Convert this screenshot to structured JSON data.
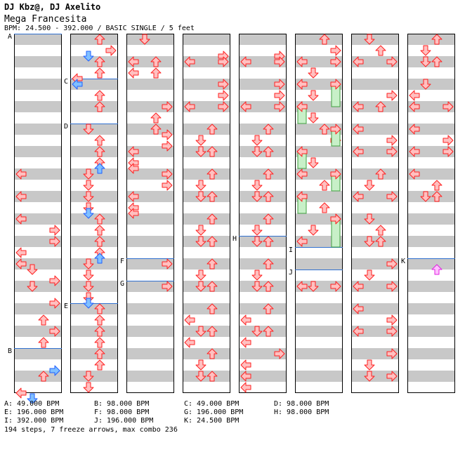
{
  "header": {
    "artist": "DJ Kbz@, DJ Axelito",
    "title": "Mega Francesita",
    "bpm_info": "BPM: 24.500 - 392.000 / BASIC SINGLE / 5 feet"
  },
  "legend": [
    {
      "id": "A",
      "text": "A: 49.000 BPM"
    },
    {
      "id": "B",
      "text": "B: 98.000 BPM"
    },
    {
      "id": "C",
      "text": "C: 49.000 BPM"
    },
    {
      "id": "D",
      "text": "D: 98.000 BPM"
    },
    {
      "id": "E",
      "text": "E: 196.000 BPM"
    },
    {
      "id": "F",
      "text": "F: 98.000 BPM"
    },
    {
      "id": "G",
      "text": "G: 196.000 BPM"
    },
    {
      "id": "H",
      "text": "H: 98.000 BPM"
    },
    {
      "id": "I",
      "text": "I: 392.000 BPM"
    },
    {
      "id": "J",
      "text": "J: 196.000 BPM"
    },
    {
      "id": "K",
      "text": "K: 24.500 BPM"
    }
  ],
  "footer": "194 steps, 7 freeze arrows, max combo 236",
  "colors": {
    "stripe": "#c8c8c8",
    "arrow_fill": "#ffc0c0",
    "arrow_stroke": "#ff2020",
    "blue_fill": "#80c0ff",
    "blue_stroke": "#2060ff",
    "pink_fill": "#ffc0ff",
    "pink_stroke": "#e020e0",
    "freeze_fill": "#c8f0c8",
    "freeze_stroke": "#40a040",
    "bpm_line": "#3070d0"
  },
  "markers": [
    {
      "label": "A",
      "col": 0,
      "row": 0
    },
    {
      "label": "B",
      "col": 0,
      "row": 14
    },
    {
      "label": "C",
      "col": 1,
      "row": 2
    },
    {
      "label": "D",
      "col": 1,
      "row": 4
    },
    {
      "label": "E",
      "col": 1,
      "row": 12
    },
    {
      "label": "F",
      "col": 2,
      "row": 10
    },
    {
      "label": "G",
      "col": 2,
      "row": 11
    },
    {
      "label": "H",
      "col": 4,
      "row": 9
    },
    {
      "label": "I",
      "col": 5,
      "row": 9.5
    },
    {
      "label": "J",
      "col": 5,
      "row": 10.5
    },
    {
      "label": "K",
      "col": 7,
      "row": 10
    }
  ],
  "notes": [
    {
      "c": 0,
      "r": 9.5,
      "d": "L"
    },
    {
      "c": 0,
      "r": 10,
      "d": "L"
    },
    {
      "c": 0,
      "r": 7,
      "d": "L"
    },
    {
      "c": 0,
      "r": 8.5,
      "d": "R"
    },
    {
      "c": 0,
      "r": 9,
      "d": "R"
    },
    {
      "c": 0,
      "r": 10.25,
      "d": "D"
    },
    {
      "c": 0,
      "r": 10.75,
      "d": "R"
    },
    {
      "c": 0,
      "r": 11,
      "d": "D"
    },
    {
      "c": 0,
      "r": 11.75,
      "d": "R"
    },
    {
      "c": 0,
      "r": 12.5,
      "d": "U"
    },
    {
      "c": 0,
      "r": 13,
      "d": "R"
    },
    {
      "c": 0,
      "r": 13.5,
      "d": "U"
    },
    {
      "c": 0,
      "r": 14.75,
      "d": "R",
      "b": 1
    },
    {
      "c": 0,
      "r": 15,
      "d": "U"
    },
    {
      "c": 0,
      "r": 15.75,
      "d": "L"
    },
    {
      "c": 0,
      "r": 16,
      "d": "D",
      "b": 1
    },
    {
      "c": 0,
      "r": 6,
      "d": "L"
    },
    {
      "c": 0,
      "r": 8,
      "d": "L"
    },
    {
      "c": 1,
      "r": 0,
      "d": "U"
    },
    {
      "c": 1,
      "r": 0.5,
      "d": "R"
    },
    {
      "c": 1,
      "r": 0.75,
      "d": "D",
      "b": 1
    },
    {
      "c": 1,
      "r": 1,
      "d": "U"
    },
    {
      "c": 1,
      "r": 1.5,
      "d": "U"
    },
    {
      "c": 1,
      "r": 1.75,
      "d": "L"
    },
    {
      "c": 1,
      "r": 2,
      "d": "L",
      "b": 1
    },
    {
      "c": 1,
      "r": 2.5,
      "d": "U"
    },
    {
      "c": 1,
      "r": 3,
      "d": "U"
    },
    {
      "c": 1,
      "r": 4,
      "d": "D"
    },
    {
      "c": 1,
      "r": 4.5,
      "d": "U"
    },
    {
      "c": 1,
      "r": 5,
      "d": "U"
    },
    {
      "c": 1,
      "r": 5.5,
      "d": "U"
    },
    {
      "c": 1,
      "r": 5.75,
      "d": "U",
      "b": 1
    },
    {
      "c": 1,
      "r": 6,
      "d": "D"
    },
    {
      "c": 1,
      "r": 6.5,
      "d": "D"
    },
    {
      "c": 1,
      "r": 7,
      "d": "D"
    },
    {
      "c": 1,
      "r": 7.5,
      "d": "D"
    },
    {
      "c": 1,
      "r": 7.75,
      "d": "D",
      "b": 1
    },
    {
      "c": 1,
      "r": 8,
      "d": "U"
    },
    {
      "c": 1,
      "r": 8.5,
      "d": "U"
    },
    {
      "c": 1,
      "r": 9,
      "d": "U"
    },
    {
      "c": 1,
      "r": 9.5,
      "d": "U"
    },
    {
      "c": 1,
      "r": 9.75,
      "d": "U",
      "b": 1
    },
    {
      "c": 1,
      "r": 10,
      "d": "D"
    },
    {
      "c": 1,
      "r": 10.5,
      "d": "D"
    },
    {
      "c": 1,
      "r": 11,
      "d": "D"
    },
    {
      "c": 1,
      "r": 11.5,
      "d": "D"
    },
    {
      "c": 1,
      "r": 11.75,
      "d": "D",
      "b": 1
    },
    {
      "c": 1,
      "r": 12,
      "d": "U"
    },
    {
      "c": 1,
      "r": 12.5,
      "d": "U"
    },
    {
      "c": 1,
      "r": 13,
      "d": "U"
    },
    {
      "c": 1,
      "r": 13.5,
      "d": "U"
    },
    {
      "c": 1,
      "r": 14,
      "d": "U"
    },
    {
      "c": 1,
      "r": 14.5,
      "d": "U"
    },
    {
      "c": 1,
      "r": 15,
      "d": "D"
    },
    {
      "c": 1,
      "r": 15.5,
      "d": "D"
    },
    {
      "c": 2,
      "r": 0,
      "d": "D"
    },
    {
      "c": 2,
      "r": 0,
      "d": "D",
      "x": 1
    },
    {
      "c": 2,
      "r": 1,
      "d": "L"
    },
    {
      "c": 2,
      "r": 1,
      "d": "U",
      "x": 1
    },
    {
      "c": 2,
      "r": 1.5,
      "d": "U",
      "x": 1
    },
    {
      "c": 2,
      "r": 1.5,
      "d": "L"
    },
    {
      "c": 2,
      "r": 3,
      "d": "R"
    },
    {
      "c": 2,
      "r": 3.5,
      "d": "U"
    },
    {
      "c": 2,
      "r": 4,
      "d": "U"
    },
    {
      "c": 2,
      "r": 4.25,
      "d": "R"
    },
    {
      "c": 2,
      "r": 4.75,
      "d": "R"
    },
    {
      "c": 2,
      "r": 5,
      "d": "L"
    },
    {
      "c": 2,
      "r": 5.5,
      "d": "L"
    },
    {
      "c": 2,
      "r": 5.75,
      "d": "L"
    },
    {
      "c": 2,
      "r": 6,
      "d": "R"
    },
    {
      "c": 2,
      "r": 6.5,
      "d": "R"
    },
    {
      "c": 2,
      "r": 7,
      "d": "L"
    },
    {
      "c": 2,
      "r": 7.5,
      "d": "L"
    },
    {
      "c": 2,
      "r": 7.75,
      "d": "L"
    },
    {
      "c": 2,
      "r": 10,
      "d": "R"
    },
    {
      "c": 2,
      "r": 11,
      "d": "R"
    },
    {
      "c": 3,
      "r": 0.75,
      "d": "R"
    },
    {
      "c": 3,
      "r": 1,
      "d": "L"
    },
    {
      "c": 3,
      "r": 1,
      "d": "R",
      "x": 1
    },
    {
      "c": 3,
      "r": 2,
      "d": "R"
    },
    {
      "c": 3,
      "r": 2.5,
      "d": "R"
    },
    {
      "c": 3,
      "r": 3,
      "d": "L"
    },
    {
      "c": 3,
      "r": 3,
      "d": "R",
      "x": 1
    },
    {
      "c": 3,
      "r": 4,
      "d": "U"
    },
    {
      "c": 3,
      "r": 4.5,
      "d": "D"
    },
    {
      "c": 3,
      "r": 5,
      "d": "D"
    },
    {
      "c": 3,
      "r": 5,
      "d": "U",
      "x": 1
    },
    {
      "c": 3,
      "r": 6,
      "d": "U"
    },
    {
      "c": 3,
      "r": 6.5,
      "d": "D"
    },
    {
      "c": 3,
      "r": 7,
      "d": "D"
    },
    {
      "c": 3,
      "r": 7,
      "d": "U",
      "x": 1
    },
    {
      "c": 3,
      "r": 8,
      "d": "U"
    },
    {
      "c": 3,
      "r": 8.5,
      "d": "D"
    },
    {
      "c": 3,
      "r": 9,
      "d": "D"
    },
    {
      "c": 3,
      "r": 9,
      "d": "U",
      "x": 1
    },
    {
      "c": 3,
      "r": 10,
      "d": "U"
    },
    {
      "c": 3,
      "r": 10.5,
      "d": "D"
    },
    {
      "c": 3,
      "r": 11,
      "d": "D"
    },
    {
      "c": 3,
      "r": 11,
      "d": "U",
      "x": 1
    },
    {
      "c": 3,
      "r": 12,
      "d": "U"
    },
    {
      "c": 3,
      "r": 13,
      "d": "D"
    },
    {
      "c": 3,
      "r": 13,
      "d": "U",
      "x": 1
    },
    {
      "c": 3,
      "r": 12.5,
      "d": "L"
    },
    {
      "c": 3,
      "r": 13.5,
      "d": "L"
    },
    {
      "c": 3,
      "r": 14,
      "d": "U"
    },
    {
      "c": 3,
      "r": 14.5,
      "d": "D"
    },
    {
      "c": 3,
      "r": 15,
      "d": "D"
    },
    {
      "c": 3,
      "r": 15,
      "d": "U",
      "x": 1
    },
    {
      "c": 4,
      "r": 0.75,
      "d": "R"
    },
    {
      "c": 4,
      "r": 1,
      "d": "L"
    },
    {
      "c": 4,
      "r": 1,
      "d": "R",
      "x": 1
    },
    {
      "c": 4,
      "r": 2,
      "d": "R"
    },
    {
      "c": 4,
      "r": 2.5,
      "d": "R"
    },
    {
      "c": 4,
      "r": 3,
      "d": "L"
    },
    {
      "c": 4,
      "r": 3,
      "d": "R",
      "x": 1
    },
    {
      "c": 4,
      "r": 4,
      "d": "U"
    },
    {
      "c": 4,
      "r": 4.5,
      "d": "D"
    },
    {
      "c": 4,
      "r": 5,
      "d": "D"
    },
    {
      "c": 4,
      "r": 5,
      "d": "U",
      "x": 1
    },
    {
      "c": 4,
      "r": 6,
      "d": "U"
    },
    {
      "c": 4,
      "r": 6.5,
      "d": "D"
    },
    {
      "c": 4,
      "r": 7,
      "d": "D"
    },
    {
      "c": 4,
      "r": 7,
      "d": "U",
      "x": 1
    },
    {
      "c": 4,
      "r": 8,
      "d": "U"
    },
    {
      "c": 4,
      "r": 8.5,
      "d": "D"
    },
    {
      "c": 4,
      "r": 9,
      "d": "D"
    },
    {
      "c": 4,
      "r": 9,
      "d": "U",
      "x": 1
    },
    {
      "c": 4,
      "r": 10,
      "d": "U"
    },
    {
      "c": 4,
      "r": 10.5,
      "d": "D"
    },
    {
      "c": 4,
      "r": 11,
      "d": "D"
    },
    {
      "c": 4,
      "r": 11,
      "d": "U",
      "x": 1
    },
    {
      "c": 4,
      "r": 12,
      "d": "U"
    },
    {
      "c": 4,
      "r": 12.5,
      "d": "L"
    },
    {
      "c": 4,
      "r": 13,
      "d": "D"
    },
    {
      "c": 4,
      "r": 13,
      "d": "U",
      "x": 1
    },
    {
      "c": 4,
      "r": 13.5,
      "d": "L"
    },
    {
      "c": 4,
      "r": 14,
      "d": "R"
    },
    {
      "c": 4,
      "r": 14.5,
      "d": "L"
    },
    {
      "c": 4,
      "r": 15,
      "d": "L"
    },
    {
      "c": 4,
      "r": 15.5,
      "d": "L"
    },
    {
      "c": 5,
      "r": 0,
      "d": "U"
    },
    {
      "c": 5,
      "r": 0.5,
      "d": "R"
    },
    {
      "c": 5,
      "r": 1,
      "d": "L"
    },
    {
      "c": 5,
      "r": 1,
      "d": "R",
      "x": 1
    },
    {
      "c": 5,
      "r": 1.5,
      "d": "D"
    },
    {
      "c": 5,
      "r": 2,
      "d": "L"
    },
    {
      "c": 5,
      "r": 2.5,
      "d": "D"
    },
    {
      "c": 5,
      "r": 3,
      "d": "L"
    },
    {
      "c": 5,
      "r": 3.5,
      "d": "D"
    },
    {
      "c": 5,
      "r": 4,
      "d": "U"
    },
    {
      "c": 5,
      "r": 4.5,
      "d": "R"
    },
    {
      "c": 5,
      "r": 5,
      "d": "L"
    },
    {
      "c": 5,
      "r": 5.5,
      "d": "D"
    },
    {
      "c": 5,
      "r": 6,
      "d": "L"
    },
    {
      "c": 5,
      "r": 6.5,
      "d": "U"
    },
    {
      "c": 5,
      "r": 7,
      "d": "L"
    },
    {
      "c": 5,
      "r": 7.5,
      "d": "U"
    },
    {
      "c": 5,
      "r": 8,
      "d": "R"
    },
    {
      "c": 5,
      "r": 8.5,
      "d": "D"
    },
    {
      "c": 5,
      "r": 9,
      "d": "L"
    },
    {
      "c": 5,
      "r": 11,
      "d": "L"
    },
    {
      "c": 5,
      "r": 11,
      "d": "D",
      "x": 1
    },
    {
      "c": 5,
      "r": 11,
      "d": "R",
      "x": 2
    },
    {
      "c": 5,
      "r": 2,
      "d": "R",
      "f": 1,
      "len": 1.0
    },
    {
      "c": 5,
      "r": 3,
      "d": "L",
      "f": 1,
      "len": 0.75
    },
    {
      "c": 5,
      "r": 4,
      "d": "R",
      "f": 1,
      "len": 0.75
    },
    {
      "c": 5,
      "r": 5,
      "d": "L",
      "f": 1,
      "len": 0.75
    },
    {
      "c": 5,
      "r": 6,
      "d": "R",
      "f": 1,
      "len": 0.75
    },
    {
      "c": 5,
      "r": 7,
      "d": "L",
      "f": 1,
      "len": 0.75
    },
    {
      "c": 5,
      "r": 8,
      "d": "R",
      "f": 1,
      "len": 1.25
    },
    {
      "c": 6,
      "r": 0,
      "d": "D"
    },
    {
      "c": 6,
      "r": 0.5,
      "d": "U"
    },
    {
      "c": 6,
      "r": 1,
      "d": "L"
    },
    {
      "c": 6,
      "r": 1,
      "d": "R",
      "x": 1
    },
    {
      "c": 6,
      "r": 2.5,
      "d": "R"
    },
    {
      "c": 6,
      "r": 3,
      "d": "L"
    },
    {
      "c": 6,
      "r": 3,
      "d": "U",
      "x": 1
    },
    {
      "c": 6,
      "r": 4,
      "d": "L"
    },
    {
      "c": 6,
      "r": 4.5,
      "d": "R"
    },
    {
      "c": 6,
      "r": 5,
      "d": "L"
    },
    {
      "c": 6,
      "r": 5,
      "d": "R",
      "x": 1
    },
    {
      "c": 6,
      "r": 6,
      "d": "U"
    },
    {
      "c": 6,
      "r": 6.5,
      "d": "D"
    },
    {
      "c": 6,
      "r": 7,
      "d": "L"
    },
    {
      "c": 6,
      "r": 7,
      "d": "R",
      "x": 1
    },
    {
      "c": 6,
      "r": 8,
      "d": "D"
    },
    {
      "c": 6,
      "r": 8.5,
      "d": "U"
    },
    {
      "c": 6,
      "r": 9,
      "d": "D"
    },
    {
      "c": 6,
      "r": 9,
      "d": "U",
      "x": 1
    },
    {
      "c": 6,
      "r": 10,
      "d": "R"
    },
    {
      "c": 6,
      "r": 10.5,
      "d": "D"
    },
    {
      "c": 6,
      "r": 11,
      "d": "L"
    },
    {
      "c": 6,
      "r": 11,
      "d": "R",
      "x": 1
    },
    {
      "c": 6,
      "r": 12,
      "d": "L"
    },
    {
      "c": 6,
      "r": 12.5,
      "d": "R"
    },
    {
      "c": 6,
      "r": 13,
      "d": "L"
    },
    {
      "c": 6,
      "r": 13,
      "d": "R",
      "x": 1
    },
    {
      "c": 6,
      "r": 14,
      "d": "R"
    },
    {
      "c": 6,
      "r": 14.5,
      "d": "D"
    },
    {
      "c": 6,
      "r": 15,
      "d": "D"
    },
    {
      "c": 6,
      "r": 15,
      "d": "R",
      "x": 1
    },
    {
      "c": 7,
      "r": 0,
      "d": "U"
    },
    {
      "c": 7,
      "r": 0.5,
      "d": "D"
    },
    {
      "c": 7,
      "r": 1,
      "d": "D"
    },
    {
      "c": 7,
      "r": 1,
      "d": "U",
      "x": 1
    },
    {
      "c": 7,
      "r": 2,
      "d": "D"
    },
    {
      "c": 7,
      "r": 2.5,
      "d": "L"
    },
    {
      "c": 7,
      "r": 3,
      "d": "L"
    },
    {
      "c": 7,
      "r": 3,
      "d": "R",
      "x": 1
    },
    {
      "c": 7,
      "r": 4,
      "d": "L"
    },
    {
      "c": 7,
      "r": 4.5,
      "d": "R"
    },
    {
      "c": 7,
      "r": 5,
      "d": "L"
    },
    {
      "c": 7,
      "r": 5,
      "d": "R",
      "x": 1
    },
    {
      "c": 7,
      "r": 6,
      "d": "L"
    },
    {
      "c": 7,
      "r": 6.5,
      "d": "U"
    },
    {
      "c": 7,
      "r": 7,
      "d": "D"
    },
    {
      "c": 7,
      "r": 7,
      "d": "U",
      "x": 1
    },
    {
      "c": 7,
      "r": 10.25,
      "d": "U",
      "p": 1
    }
  ]
}
